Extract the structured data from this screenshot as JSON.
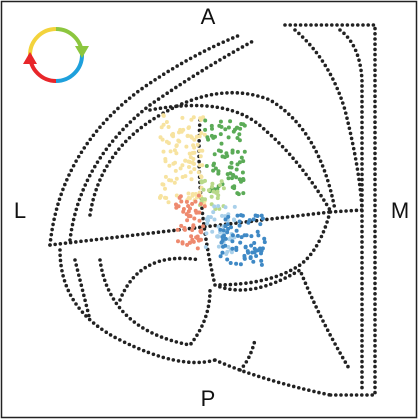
{
  "labels": {
    "anterior": "A",
    "lateral": "L",
    "medial": "M",
    "posterior": "P"
  }
}
